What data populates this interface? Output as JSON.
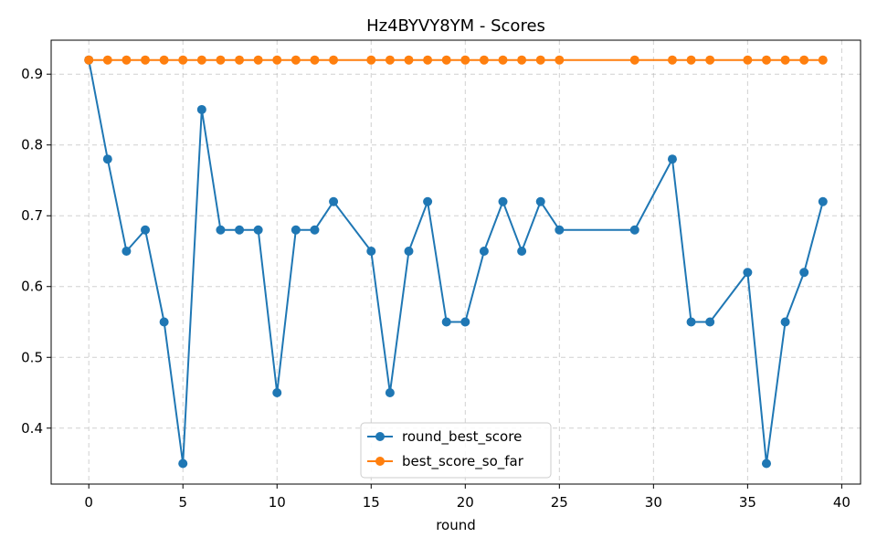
{
  "chart_data": {
    "type": "line",
    "title": "Hz4BYVY8YM - Scores",
    "xlabel": "round",
    "ylabel": "",
    "xlim": [
      -2,
      41
    ],
    "ylim": [
      0.321,
      0.948
    ],
    "xticks": [
      0,
      5,
      10,
      15,
      20,
      25,
      30,
      35,
      40
    ],
    "yticks": [
      0.4,
      0.5,
      0.6,
      0.7,
      0.8,
      0.9
    ],
    "grid": true,
    "legend_position": "lower-center",
    "series": [
      {
        "name": "round_best_score",
        "color": "#1f77b4",
        "x": [
          0,
          1,
          2,
          3,
          4,
          5,
          6,
          7,
          8,
          9,
          10,
          11,
          12,
          13,
          15,
          16,
          17,
          18,
          19,
          20,
          21,
          22,
          23,
          24,
          25,
          29,
          31,
          32,
          33,
          35,
          36,
          37,
          38,
          39
        ],
        "y": [
          0.92,
          0.78,
          0.65,
          0.68,
          0.55,
          0.35,
          0.85,
          0.68,
          0.68,
          0.68,
          0.45,
          0.68,
          0.68,
          0.72,
          0.65,
          0.45,
          0.65,
          0.72,
          0.55,
          0.55,
          0.65,
          0.72,
          0.65,
          0.72,
          0.68,
          0.68,
          0.78,
          0.55,
          0.55,
          0.62,
          0.35,
          0.55,
          0.62,
          0.72
        ]
      },
      {
        "name": "best_score_so_far",
        "color": "#ff7f0e",
        "x": [
          0,
          1,
          2,
          3,
          4,
          5,
          6,
          7,
          8,
          9,
          10,
          11,
          12,
          13,
          15,
          16,
          17,
          18,
          19,
          20,
          21,
          22,
          23,
          24,
          25,
          29,
          31,
          32,
          33,
          35,
          36,
          37,
          38,
          39
        ],
        "y": [
          0.92,
          0.92,
          0.92,
          0.92,
          0.92,
          0.92,
          0.92,
          0.92,
          0.92,
          0.92,
          0.92,
          0.92,
          0.92,
          0.92,
          0.92,
          0.92,
          0.92,
          0.92,
          0.92,
          0.92,
          0.92,
          0.92,
          0.92,
          0.92,
          0.92,
          0.92,
          0.92,
          0.92,
          0.92,
          0.92,
          0.92,
          0.92,
          0.92,
          0.92
        ]
      }
    ]
  }
}
